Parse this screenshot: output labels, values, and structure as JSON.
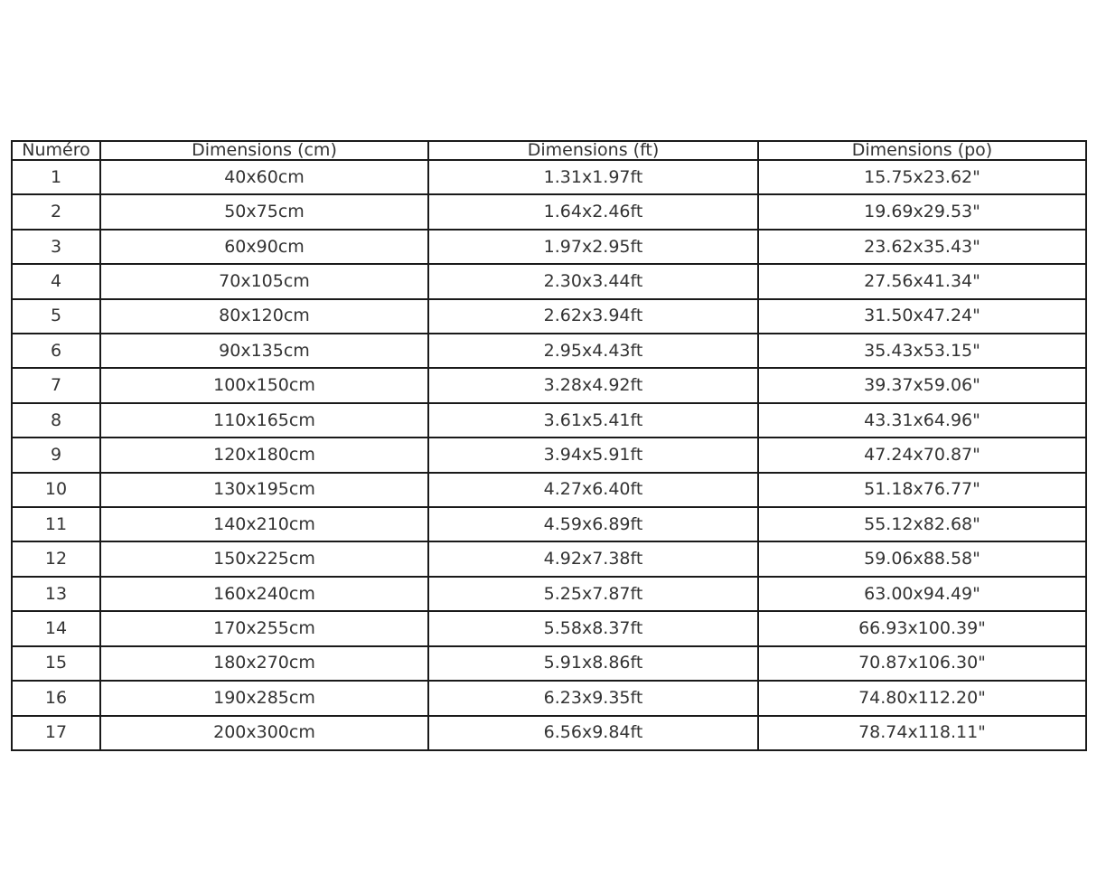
{
  "table": {
    "columns": [
      {
        "key": "numero",
        "label": "Numéro"
      },
      {
        "key": "cm",
        "label": "Dimensions (cm)"
      },
      {
        "key": "ft",
        "label": "Dimensions (ft)"
      },
      {
        "key": "po",
        "label": "Dimensions (po)"
      }
    ],
    "rows": [
      [
        "1",
        "40x60cm",
        "1.31x1.97ft",
        "15.75x23.62\""
      ],
      [
        "2",
        "50x75cm",
        "1.64x2.46ft",
        "19.69x29.53\""
      ],
      [
        "3",
        "60x90cm",
        "1.97x2.95ft",
        "23.62x35.43\""
      ],
      [
        "4",
        "70x105cm",
        "2.30x3.44ft",
        "27.56x41.34\""
      ],
      [
        "5",
        "80x120cm",
        "2.62x3.94ft",
        "31.50x47.24\""
      ],
      [
        "6",
        "90x135cm",
        "2.95x4.43ft",
        "35.43x53.15\""
      ],
      [
        "7",
        "100x150cm",
        "3.28x4.92ft",
        "39.37x59.06\""
      ],
      [
        "8",
        "110x165cm",
        "3.61x5.41ft",
        "43.31x64.96\""
      ],
      [
        "9",
        "120x180cm",
        "3.94x5.91ft",
        "47.24x70.87\""
      ],
      [
        "10",
        "130x195cm",
        "4.27x6.40ft",
        "51.18x76.77\""
      ],
      [
        "11",
        "140x210cm",
        "4.59x6.89ft",
        "55.12x82.68\""
      ],
      [
        "12",
        "150x225cm",
        "4.92x7.38ft",
        "59.06x88.58\""
      ],
      [
        "13",
        "160x240cm",
        "5.25x7.87ft",
        "63.00x94.49\""
      ],
      [
        "14",
        "170x255cm",
        "5.58x8.37ft",
        "66.93x100.39\""
      ],
      [
        "15",
        "180x270cm",
        "5.91x8.86ft",
        "70.87x106.30\""
      ],
      [
        "16",
        "190x285cm",
        "6.23x9.35ft",
        "74.80x112.20\""
      ],
      [
        "17",
        "200x300cm",
        "6.56x9.84ft",
        "78.74x118.11\""
      ]
    ]
  },
  "chart_data": {
    "type": "table",
    "title": "",
    "columns": [
      "Numéro",
      "Dimensions (cm)",
      "Dimensions (ft)",
      "Dimensions (po)"
    ],
    "rows": [
      [
        "1",
        "40x60cm",
        "1.31x1.97ft",
        "15.75x23.62\""
      ],
      [
        "2",
        "50x75cm",
        "1.64x2.46ft",
        "19.69x29.53\""
      ],
      [
        "3",
        "60x90cm",
        "1.97x2.95ft",
        "23.62x35.43\""
      ],
      [
        "4",
        "70x105cm",
        "2.30x3.44ft",
        "27.56x41.34\""
      ],
      [
        "5",
        "80x120cm",
        "2.62x3.94ft",
        "31.50x47.24\""
      ],
      [
        "6",
        "90x135cm",
        "2.95x4.43ft",
        "35.43x53.15\""
      ],
      [
        "7",
        "100x150cm",
        "3.28x4.92ft",
        "39.37x59.06\""
      ],
      [
        "8",
        "110x165cm",
        "3.61x5.41ft",
        "43.31x64.96\""
      ],
      [
        "9",
        "120x180cm",
        "3.94x5.91ft",
        "47.24x70.87\""
      ],
      [
        "10",
        "130x195cm",
        "4.27x6.40ft",
        "51.18x76.77\""
      ],
      [
        "11",
        "140x210cm",
        "4.59x6.89ft",
        "55.12x82.68\""
      ],
      [
        "12",
        "150x225cm",
        "4.92x7.38ft",
        "59.06x88.58\""
      ],
      [
        "13",
        "160x240cm",
        "5.25x7.87ft",
        "63.00x94.49\""
      ],
      [
        "14",
        "170x255cm",
        "5.58x8.37ft",
        "66.93x100.39\""
      ],
      [
        "15",
        "180x270cm",
        "5.91x8.86ft",
        "70.87x106.30\""
      ],
      [
        "16",
        "190x285cm",
        "6.23x9.35ft",
        "74.80x112.20\""
      ],
      [
        "17",
        "200x300cm",
        "6.56x9.84ft",
        "78.74x118.11\""
      ]
    ]
  },
  "colors": {
    "background": "#ffffff",
    "border": "#1a1a1a",
    "text": "#333333"
  }
}
